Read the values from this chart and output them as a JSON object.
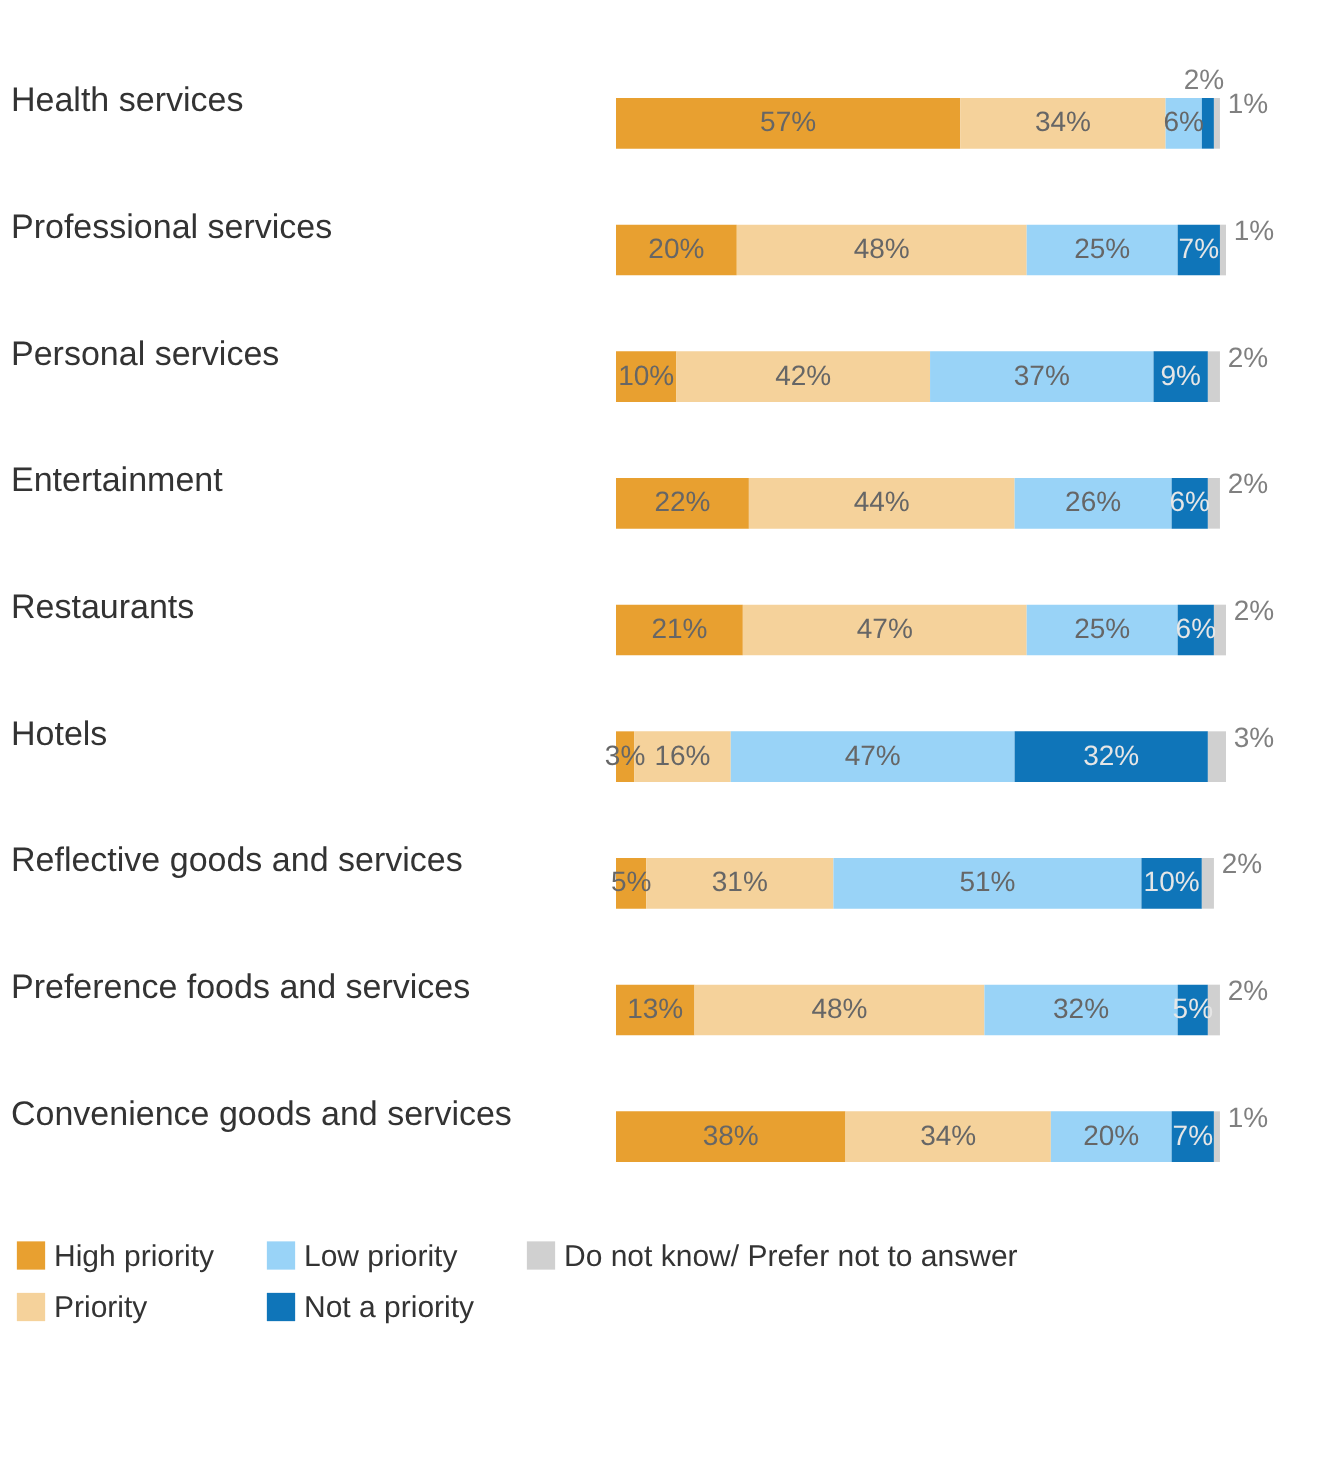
{
  "chart_data": {
    "type": "bar",
    "orientation": "horizontal",
    "stacked": true,
    "categories": [
      "Health services",
      "Professional services",
      "Personal services",
      "Entertainment",
      "Restaurants",
      "Hotels",
      "Reflective goods and services",
      "Preference foods and services",
      "Convenience goods and services"
    ],
    "series": [
      {
        "name": "High priority",
        "color": "#e8a030",
        "values": [
          57,
          20,
          10,
          22,
          21,
          3,
          5,
          13,
          38
        ],
        "value_labels": [
          "57%",
          "20%",
          "10%",
          "22%",
          "21%",
          "3%",
          "5%",
          "13%",
          "38%"
        ]
      },
      {
        "name": "Priority",
        "color": "#f5d29b",
        "values": [
          34,
          48,
          42,
          44,
          47,
          16,
          31,
          48,
          34
        ],
        "value_labels": [
          "34%",
          "48%",
          "42%",
          "44%",
          "47%",
          "16%",
          "31%",
          "48%",
          "34%"
        ]
      },
      {
        "name": "Low priority",
        "color": "#99d3f7",
        "values": [
          6,
          25,
          37,
          26,
          25,
          47,
          51,
          32,
          20
        ],
        "value_labels": [
          "6%",
          "25%",
          "37%",
          "26%",
          "25%",
          "47%",
          "51%",
          "32%",
          "20%"
        ]
      },
      {
        "name": "Not a priority",
        "color": "#0f75b9",
        "values": [
          2,
          7,
          9,
          6,
          6,
          32,
          10,
          5,
          7
        ],
        "value_labels": [
          "2%",
          "7%",
          "9%",
          "6%",
          "6%",
          "32%",
          "10%",
          "5%",
          "7%"
        ]
      },
      {
        "name": "Do not know/ Prefer not to answer",
        "color": "#d0d0d0",
        "values": [
          1,
          1,
          2,
          2,
          2,
          3,
          2,
          2,
          1
        ],
        "value_labels": [
          "1%",
          "1%",
          "2%",
          "2%",
          "2%",
          "3%",
          "2%",
          "2%",
          "1%"
        ]
      }
    ],
    "tick_labels": "y",
    "legend": "bottom"
  }
}
